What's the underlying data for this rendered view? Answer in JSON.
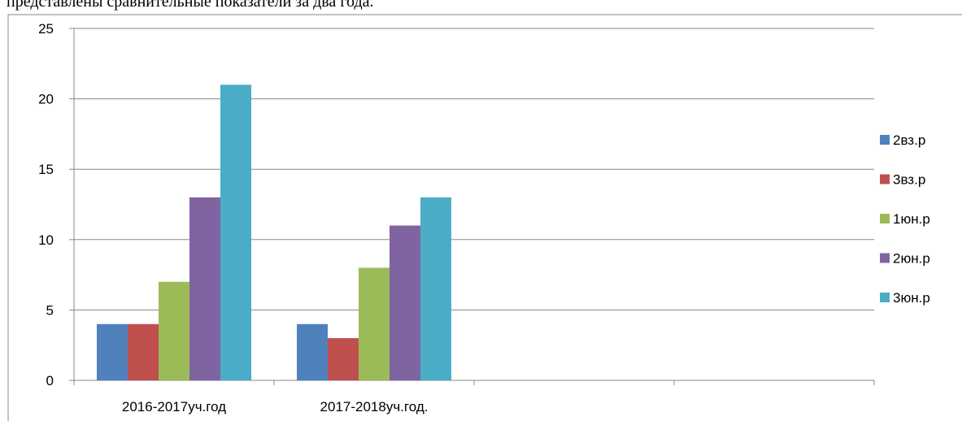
{
  "caption": "представлены сравнительные показатели за два года.",
  "chart_data": {
    "type": "bar",
    "categories": [
      "2016-2017уч.год",
      "2017-2018уч.год.",
      null,
      null
    ],
    "series": [
      {
        "name": "2вз.р",
        "color": "#4f81bd",
        "values": [
          4,
          4,
          null,
          null
        ]
      },
      {
        "name": "3вз.р",
        "color": "#c0504d",
        "values": [
          4,
          3,
          null,
          null
        ]
      },
      {
        "name": "1юн.р",
        "color": "#9bbb59",
        "values": [
          7,
          8,
          null,
          null
        ]
      },
      {
        "name": "2юн.р",
        "color": "#8064a2",
        "values": [
          13,
          11,
          null,
          null
        ]
      },
      {
        "name": "3юн.р",
        "color": "#4bacc6",
        "values": [
          21,
          13,
          null,
          null
        ]
      }
    ],
    "ylim": [
      0,
      25
    ],
    "yticks": [
      0,
      5,
      10,
      15,
      20,
      25
    ],
    "grid": true,
    "legend": "right"
  }
}
